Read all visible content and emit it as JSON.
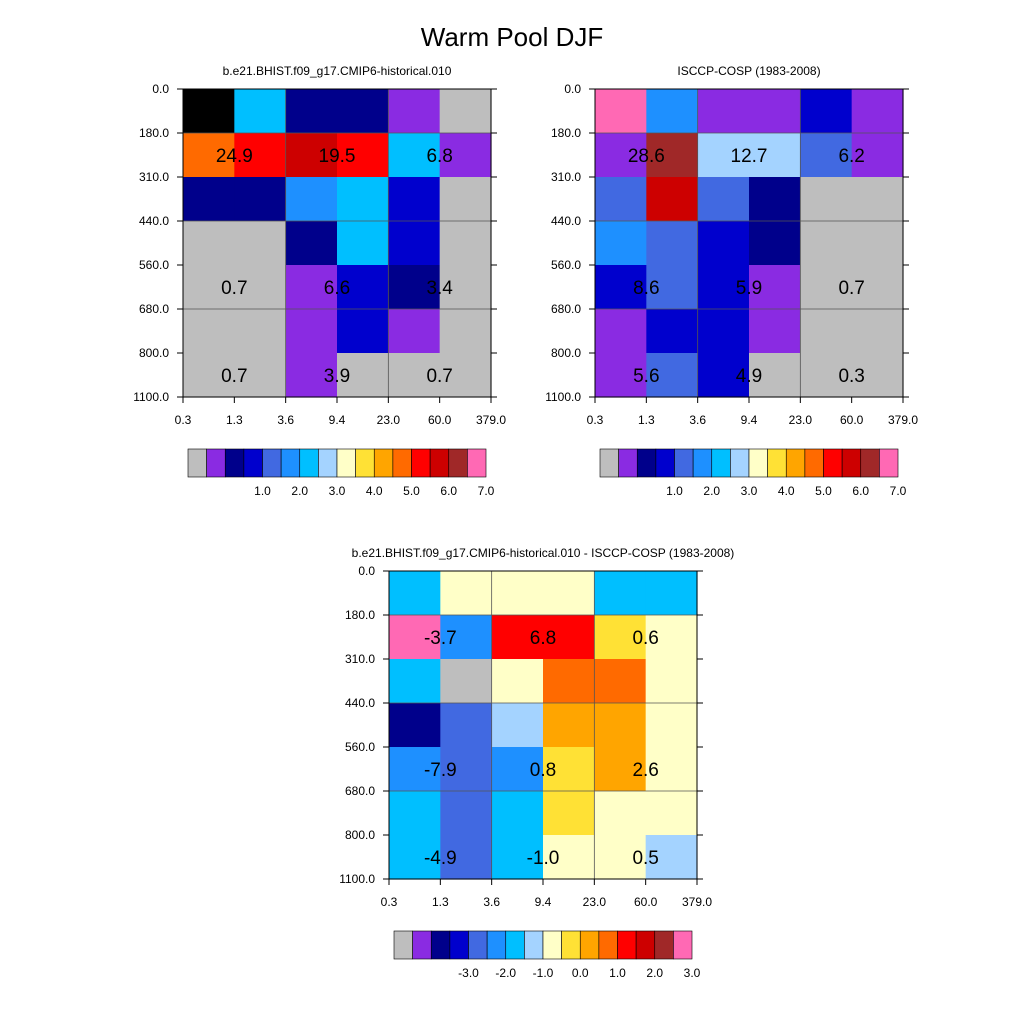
{
  "title": "Warm Pool DJF",
  "chart_data": [
    {
      "type": "heatmap",
      "title": "b.e21.BHIST.f09_g17.CMIP6-historical.010",
      "x_tick_labels": [
        "0.3",
        "1.3",
        "3.6",
        "9.4",
        "23.0",
        "60.0",
        "379.0"
      ],
      "y_tick_labels": [
        "0.0",
        "180.0",
        "310.0",
        "440.0",
        "560.0",
        "680.0",
        "800.0",
        "1100.0"
      ],
      "cells": [
        [
          16,
          6,
          2,
          2,
          1,
          0
        ],
        [
          11,
          12,
          13,
          12,
          6,
          1
        ],
        [
          2,
          2,
          5,
          6,
          3,
          0
        ],
        [
          0,
          0,
          2,
          6,
          3,
          0
        ],
        [
          0,
          0,
          1,
          3,
          2,
          0
        ],
        [
          0,
          0,
          1,
          3,
          1,
          0
        ],
        [
          0,
          0,
          1,
          0,
          0,
          0
        ]
      ],
      "cell_values": [
        [
          0.5,
          1.8,
          0.7,
          0.7,
          0.4,
          0.0
        ],
        [
          6.3,
          6.8,
          7.4,
          6.8,
          2.9,
          0.3
        ],
        [
          0.7,
          0.7,
          2.3,
          2.9,
          1.4,
          0.0
        ],
        [
          0.0,
          0.0,
          0.7,
          2.7,
          1.4,
          0.0
        ],
        [
          0.0,
          0.0,
          0.3,
          1.4,
          0.8,
          0.0
        ],
        [
          0.0,
          0.0,
          0.3,
          1.6,
          0.3,
          0.0
        ],
        [
          0.0,
          0.0,
          0.3,
          0.0,
          0.0,
          0.0
        ]
      ],
      "block_labels": [
        {
          "row": 1,
          "col": 0,
          "text": "24.9"
        },
        {
          "row": 1,
          "col": 2,
          "text": "19.5"
        },
        {
          "row": 1,
          "col": 4,
          "text": "6.8"
        },
        {
          "row": 4,
          "col": 0,
          "text": "0.7"
        },
        {
          "row": 4,
          "col": 2,
          "text": "6.6"
        },
        {
          "row": 4,
          "col": 4,
          "text": "3.4"
        },
        {
          "row": 6,
          "col": 0,
          "text": "0.7"
        },
        {
          "row": 6,
          "col": 2,
          "text": "3.9"
        },
        {
          "row": 6,
          "col": 4,
          "text": "0.7"
        }
      ],
      "colorbar": {
        "colors": [
          "#bebebe",
          "#8a2be2",
          "#00008b",
          "#0000cd",
          "#4169e1",
          "#1e90ff",
          "#00bfff",
          "#a4d3ff",
          "#ffffc8",
          "#ffe135",
          "#ffa500",
          "#ff6a00",
          "#ff0000",
          "#cd0000",
          "#a02828",
          "#ff69b4"
        ],
        "tick_labels": [
          "1.0",
          "2.0",
          "3.0",
          "4.0",
          "5.0",
          "6.0",
          "7.0"
        ]
      }
    },
    {
      "type": "heatmap",
      "title": "ISCCP-COSP (1983-2008)",
      "x_tick_labels": [
        "0.3",
        "1.3",
        "3.6",
        "9.4",
        "23.0",
        "60.0",
        "379.0"
      ],
      "y_tick_labels": [
        "0.0",
        "180.0",
        "310.0",
        "440.0",
        "560.0",
        "680.0",
        "800.0",
        "1100.0"
      ],
      "cells": [
        [
          15,
          5,
          1,
          1,
          3,
          1
        ],
        [
          1,
          14,
          7,
          7,
          4,
          1
        ],
        [
          4,
          13,
          4,
          2,
          0,
          0
        ],
        [
          5,
          4,
          3,
          2,
          0,
          0
        ],
        [
          3,
          4,
          3,
          1,
          0,
          0
        ],
        [
          1,
          3,
          3,
          1,
          0,
          0
        ],
        [
          1,
          4,
          3,
          0,
          0,
          0
        ]
      ],
      "cell_values": [
        [
          0.5,
          1.8,
          0.3,
          0.3,
          0.9,
          0.2
        ],
        [
          0.4,
          7.2,
          3.5,
          3.5,
          1.5,
          0.3
        ],
        [
          1.5,
          6.9,
          1.5,
          0.7,
          0.0,
          0.0
        ],
        [
          1.8,
          1.4,
          1.2,
          0.8,
          0.0,
          0.0
        ],
        [
          0.9,
          1.4,
          1.2,
          0.4,
          0.0,
          0.0
        ],
        [
          0.4,
          0.9,
          1.2,
          0.4,
          0.0,
          0.0
        ],
        [
          0.4,
          1.4,
          1.2,
          0.0,
          0.0,
          0.0
        ]
      ],
      "block_labels": [
        {
          "row": 1,
          "col": 0,
          "text": "28.6"
        },
        {
          "row": 1,
          "col": 2,
          "text": "12.7"
        },
        {
          "row": 1,
          "col": 4,
          "text": "6.2"
        },
        {
          "row": 4,
          "col": 0,
          "text": "8.6"
        },
        {
          "row": 4,
          "col": 2,
          "text": "5.9"
        },
        {
          "row": 4,
          "col": 4,
          "text": "0.7"
        },
        {
          "row": 6,
          "col": 0,
          "text": "5.6"
        },
        {
          "row": 6,
          "col": 2,
          "text": "4.9"
        },
        {
          "row": 6,
          "col": 4,
          "text": "0.3"
        }
      ],
      "colorbar": {
        "colors": [
          "#bebebe",
          "#8a2be2",
          "#00008b",
          "#0000cd",
          "#4169e1",
          "#1e90ff",
          "#00bfff",
          "#a4d3ff",
          "#ffffc8",
          "#ffe135",
          "#ffa500",
          "#ff6a00",
          "#ff0000",
          "#cd0000",
          "#a02828",
          "#ff69b4"
        ],
        "tick_labels": [
          "1.0",
          "2.0",
          "3.0",
          "4.0",
          "5.0",
          "6.0",
          "7.0"
        ]
      }
    },
    {
      "type": "heatmap",
      "title": "b.e21.BHIST.f09_g17.CMIP6-historical.010 - ISCCP-COSP (1983-2008)",
      "x_tick_labels": [
        "0.3",
        "1.3",
        "3.6",
        "9.4",
        "23.0",
        "60.0",
        "379.0"
      ],
      "y_tick_labels": [
        "0.0",
        "180.0",
        "310.0",
        "440.0",
        "560.0",
        "680.0",
        "800.0",
        "1100.0"
      ],
      "cells": [
        [
          6,
          8,
          8,
          8,
          6,
          6
        ],
        [
          15,
          5,
          12,
          12,
          9,
          8
        ],
        [
          6,
          0,
          8,
          11,
          11,
          8
        ],
        [
          2,
          4,
          7,
          10,
          10,
          8
        ],
        [
          5,
          4,
          5,
          9,
          10,
          8
        ],
        [
          6,
          4,
          6,
          9,
          8,
          8
        ],
        [
          6,
          4,
          6,
          8,
          8,
          7
        ]
      ],
      "cell_values": [
        [
          -0.5,
          0.2,
          0.2,
          0.2,
          -0.5,
          -0.5
        ],
        [
          3.5,
          -0.9,
          2.7,
          2.7,
          0.8,
          0.2
        ],
        [
          -0.5,
          -4.0,
          0.2,
          2.3,
          2.3,
          0.2
        ],
        [
          -2.5,
          -1.2,
          -0.2,
          1.5,
          1.5,
          0.2
        ],
        [
          -1.0,
          -1.2,
          -1.0,
          0.8,
          1.5,
          0.2
        ],
        [
          -0.5,
          -1.2,
          -0.5,
          0.8,
          0.2,
          0.2
        ],
        [
          -0.5,
          -1.2,
          -0.5,
          0.2,
          0.2,
          -0.2
        ]
      ],
      "block_labels": [
        {
          "row": 1,
          "col": 0,
          "text": "-3.7"
        },
        {
          "row": 1,
          "col": 2,
          "text": "6.8"
        },
        {
          "row": 1,
          "col": 4,
          "text": "0.6"
        },
        {
          "row": 4,
          "col": 0,
          "text": "-7.9"
        },
        {
          "row": 4,
          "col": 2,
          "text": "0.8"
        },
        {
          "row": 4,
          "col": 4,
          "text": "2.6"
        },
        {
          "row": 6,
          "col": 0,
          "text": "-4.9"
        },
        {
          "row": 6,
          "col": 2,
          "text": "-1.0"
        },
        {
          "row": 6,
          "col": 4,
          "text": "0.5"
        }
      ],
      "colorbar": {
        "colors": [
          "#bebebe",
          "#8a2be2",
          "#00008b",
          "#0000cd",
          "#4169e1",
          "#1e90ff",
          "#00bfff",
          "#a4d3ff",
          "#ffffc8",
          "#ffe135",
          "#ffa500",
          "#ff6a00",
          "#ff0000",
          "#cd0000",
          "#a02828",
          "#ff69b4"
        ],
        "tick_labels": [
          "-3.0",
          "-2.0",
          "-1.0",
          "0.0",
          "1.0",
          "2.0",
          "3.0"
        ]
      }
    }
  ]
}
